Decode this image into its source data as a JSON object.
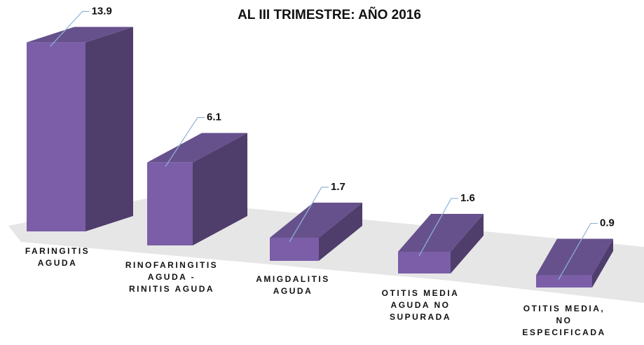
{
  "chart_data": {
    "type": "bar3d",
    "title": "AL III TRIMESTRE: AÑO 2016",
    "categories": [
      "FARINGITIS\nAGUDA",
      "RINOFARINGITIS\nAGUDA -\nRINITIS AGUDA",
      "AMIGDALITIS\nAGUDA",
      "OTITIS MEDIA\nAGUDA NO\nSUPURADA",
      "OTITIS MEDIA,\nNO\nESPECIFICADA"
    ],
    "values": [
      13.9,
      6.1,
      1.7,
      1.6,
      0.9
    ],
    "color": "#7b5ea7"
  }
}
